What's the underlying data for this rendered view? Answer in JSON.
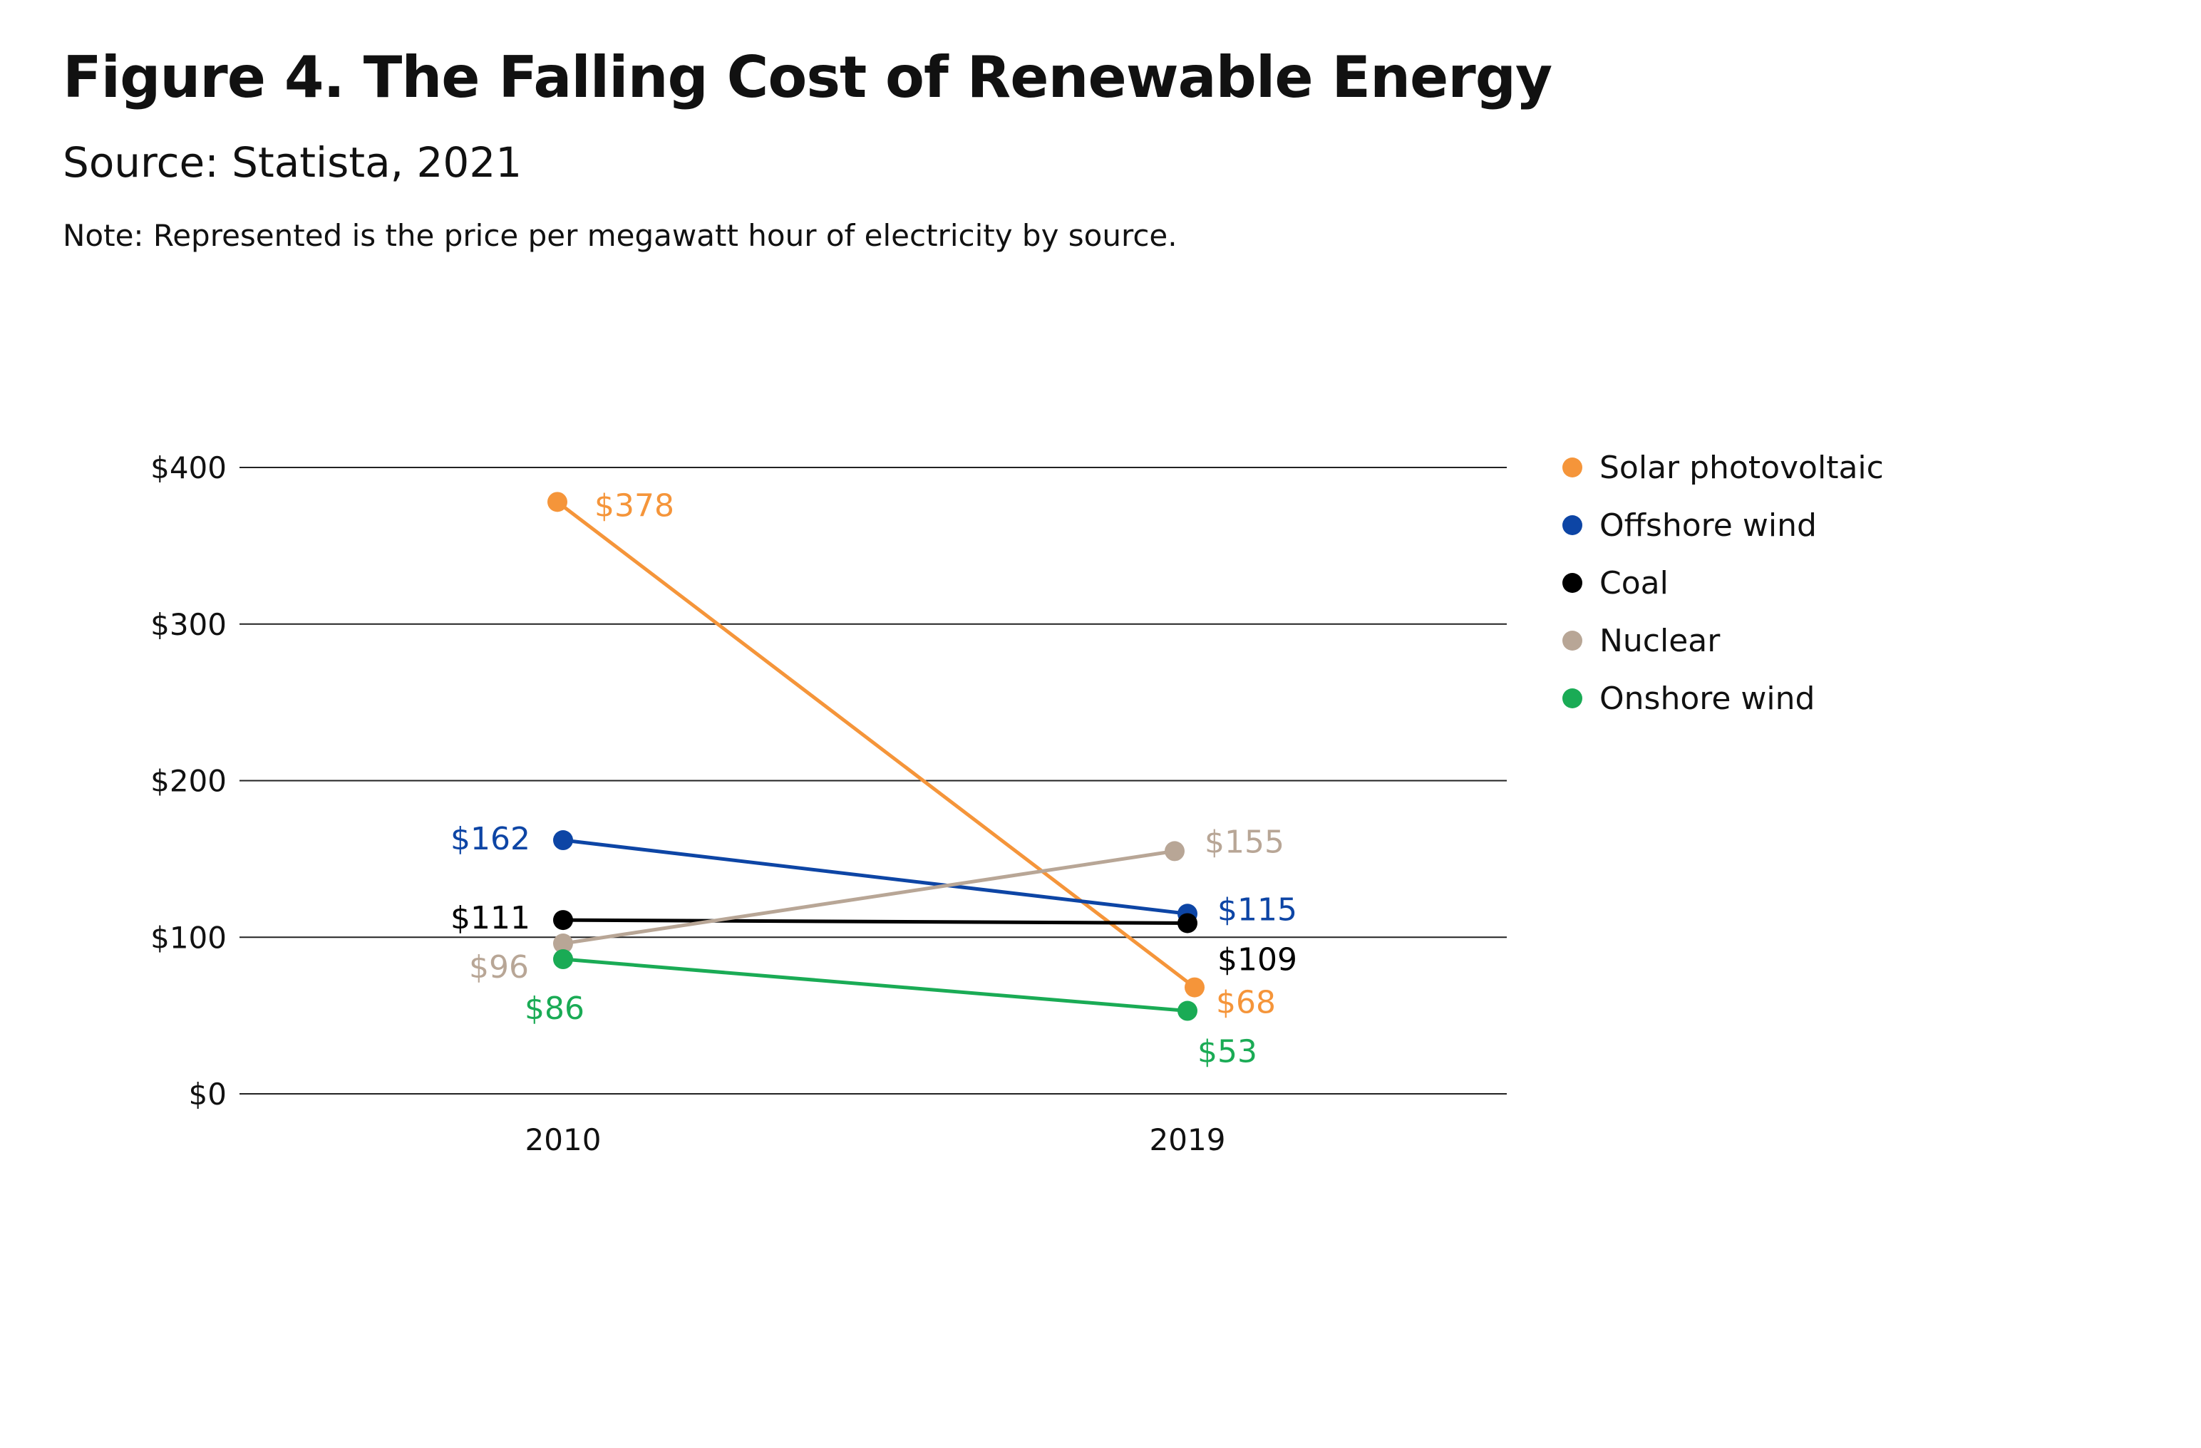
{
  "figure": {
    "title": "Figure 4. The Falling Cost of Renewable Energy",
    "source": "Source: Statista, 2021",
    "note": "Note: Represented is the price per megawatt hour of electricity by source."
  },
  "chart_data": {
    "type": "line",
    "title": "Figure 4. The Falling Cost of Renewable Energy",
    "subtitle": "Source: Statista, 2021",
    "xlabel": "",
    "ylabel": "",
    "categories": [
      "2010",
      "2019"
    ],
    "ylim": [
      0,
      400
    ],
    "yticks": [
      0,
      100,
      200,
      300,
      400
    ],
    "ytick_labels": [
      "$0",
      "$100",
      "$200",
      "$300",
      "$400"
    ],
    "grid": true,
    "legend": "right",
    "series": [
      {
        "name": "Solar photovoltaic",
        "color": "#f5953a",
        "values": [
          378,
          68
        ],
        "labels": [
          "$378",
          "$68"
        ]
      },
      {
        "name": "Offshore wind",
        "color": "#0d45a5",
        "values": [
          162,
          115
        ],
        "labels": [
          "$162",
          "$115"
        ]
      },
      {
        "name": "Coal",
        "color": "#000000",
        "values": [
          111,
          109
        ],
        "labels": [
          "$111",
          "$109"
        ]
      },
      {
        "name": "Nuclear",
        "color": "#b8a696",
        "values": [
          96,
          155
        ],
        "labels": [
          "$96",
          "$155"
        ]
      },
      {
        "name": "Onshore wind",
        "color": "#1aab55",
        "values": [
          86,
          53
        ],
        "labels": [
          "$86",
          "$53"
        ]
      }
    ]
  }
}
